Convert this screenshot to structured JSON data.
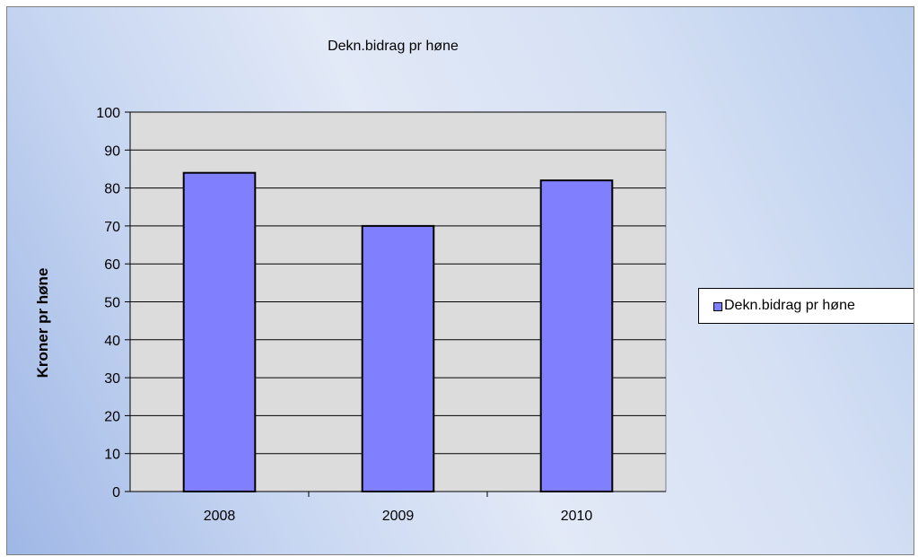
{
  "chart_data": {
    "type": "bar",
    "title": "Dekn.bidrag pr høne",
    "xlabel": "",
    "ylabel": "Kroner pr høne",
    "categories": [
      "2008",
      "2009",
      "2010"
    ],
    "series": [
      {
        "name": "Dekn.bidrag pr høne",
        "values": [
          84,
          70,
          82
        ]
      }
    ],
    "ylim": [
      0,
      100
    ],
    "yticks": [
      "0",
      "10",
      "20",
      "30",
      "40",
      "50",
      "60",
      "70",
      "80",
      "90",
      "100"
    ],
    "grid": true,
    "legend_position": "right"
  },
  "colors": {
    "bar_fill": "#8080ff",
    "bar_stroke": "#000000",
    "plot_background": "#dcdcdc",
    "gridline": "#000000"
  }
}
